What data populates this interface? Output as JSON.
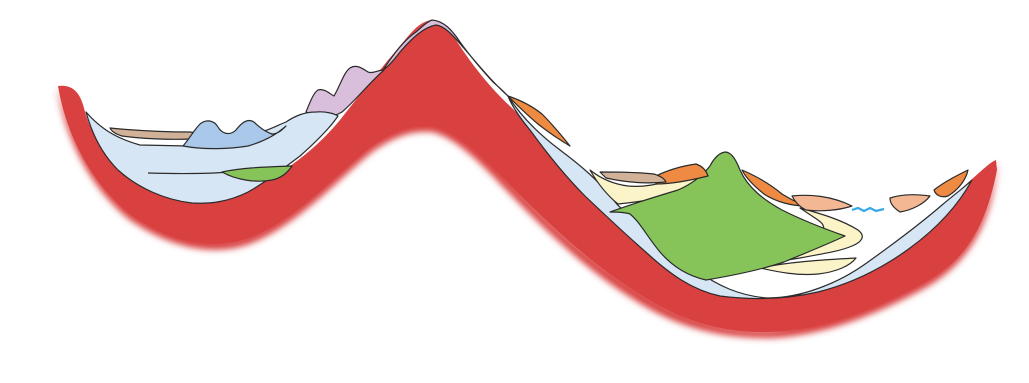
{
  "diagram": {
    "kind": "geological-cross-section",
    "labels": [],
    "colors": {
      "basement": "#d94040",
      "ice_blue": "#d6e6f5",
      "sky_blue": "#a9c8ea",
      "green": "#86c45a",
      "cream": "#fbf4c9",
      "orange": "#ef8a43",
      "peach": "#f4b794",
      "tan": "#d2b199",
      "lilac": "#d9bfdc",
      "water": "#36a7e8",
      "outline": "#2b2b2b"
    },
    "layers": [
      {
        "id": "basement-rock",
        "color_key": "basement"
      },
      {
        "id": "left-valley-fill",
        "color_key": "ice_blue"
      },
      {
        "id": "left-green-lens",
        "color_key": "green"
      },
      {
        "id": "left-blue-mounds",
        "color_key": "sky_blue"
      },
      {
        "id": "left-tan-cap",
        "color_key": "tan"
      },
      {
        "id": "lilac-peaks",
        "color_key": "lilac"
      },
      {
        "id": "summit-lilac-cap",
        "color_key": "lilac"
      },
      {
        "id": "right-valley-fill",
        "color_key": "ice_blue"
      },
      {
        "id": "cream-band",
        "color_key": "cream"
      },
      {
        "id": "green-cone",
        "color_key": "green"
      },
      {
        "id": "orange-slope-deposits",
        "color_key": "orange"
      },
      {
        "id": "peach-band",
        "color_key": "peach"
      },
      {
        "id": "tan-strip",
        "color_key": "tan"
      },
      {
        "id": "water-line",
        "color_key": "water"
      }
    ]
  }
}
